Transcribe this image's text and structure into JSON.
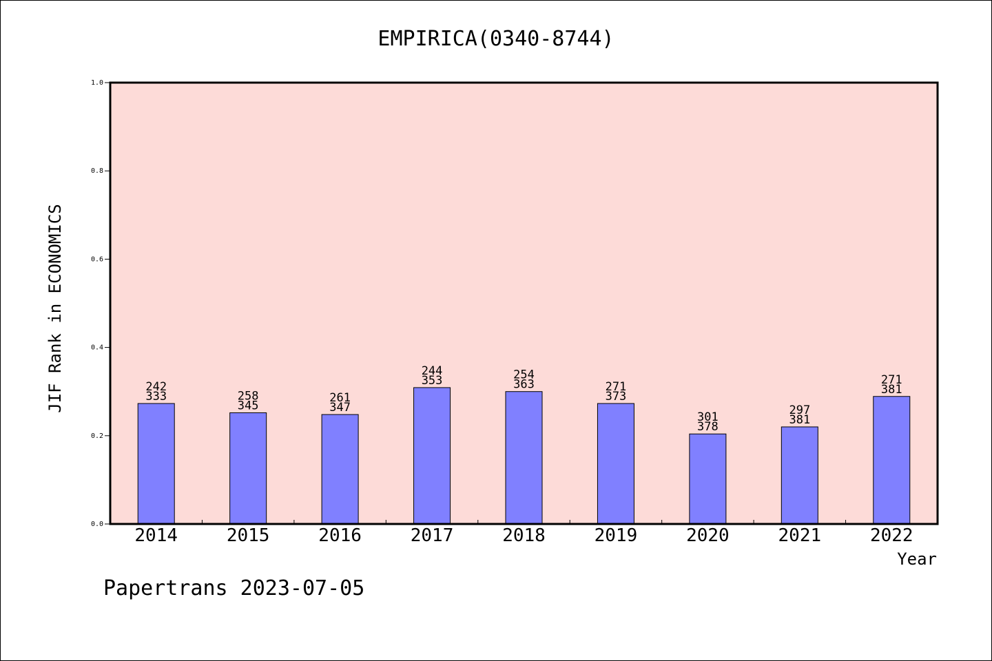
{
  "chart_data": {
    "type": "bar",
    "title": "EMPIRICA(0340-8744)",
    "xlabel": "Year",
    "ylabel": "JIF Rank in ECONOMICS",
    "ylim": [
      0,
      1.0
    ],
    "yticks": [
      "0.0",
      "0.2",
      "0.4",
      "0.6",
      "0.8",
      "1.0"
    ],
    "grid": false,
    "legend": "none",
    "categories": [
      "2014",
      "2015",
      "2016",
      "2017",
      "2018",
      "2019",
      "2020",
      "2021",
      "2022"
    ],
    "values": [
      0.273,
      0.252,
      0.248,
      0.309,
      0.3,
      0.273,
      0.204,
      0.22,
      0.289
    ],
    "rank_labels": [
      "242",
      "258",
      "261",
      "244",
      "254",
      "271",
      "301",
      "297",
      "271"
    ],
    "total_labels": [
      "333",
      "345",
      "347",
      "353",
      "363",
      "373",
      "378",
      "381",
      "381"
    ],
    "colors": {
      "plot_background": "#fddbd8",
      "bar_fill": "#8080ff",
      "bar_stroke": "#000000"
    }
  },
  "footer": {
    "text": "Papertrans 2023-07-05"
  }
}
